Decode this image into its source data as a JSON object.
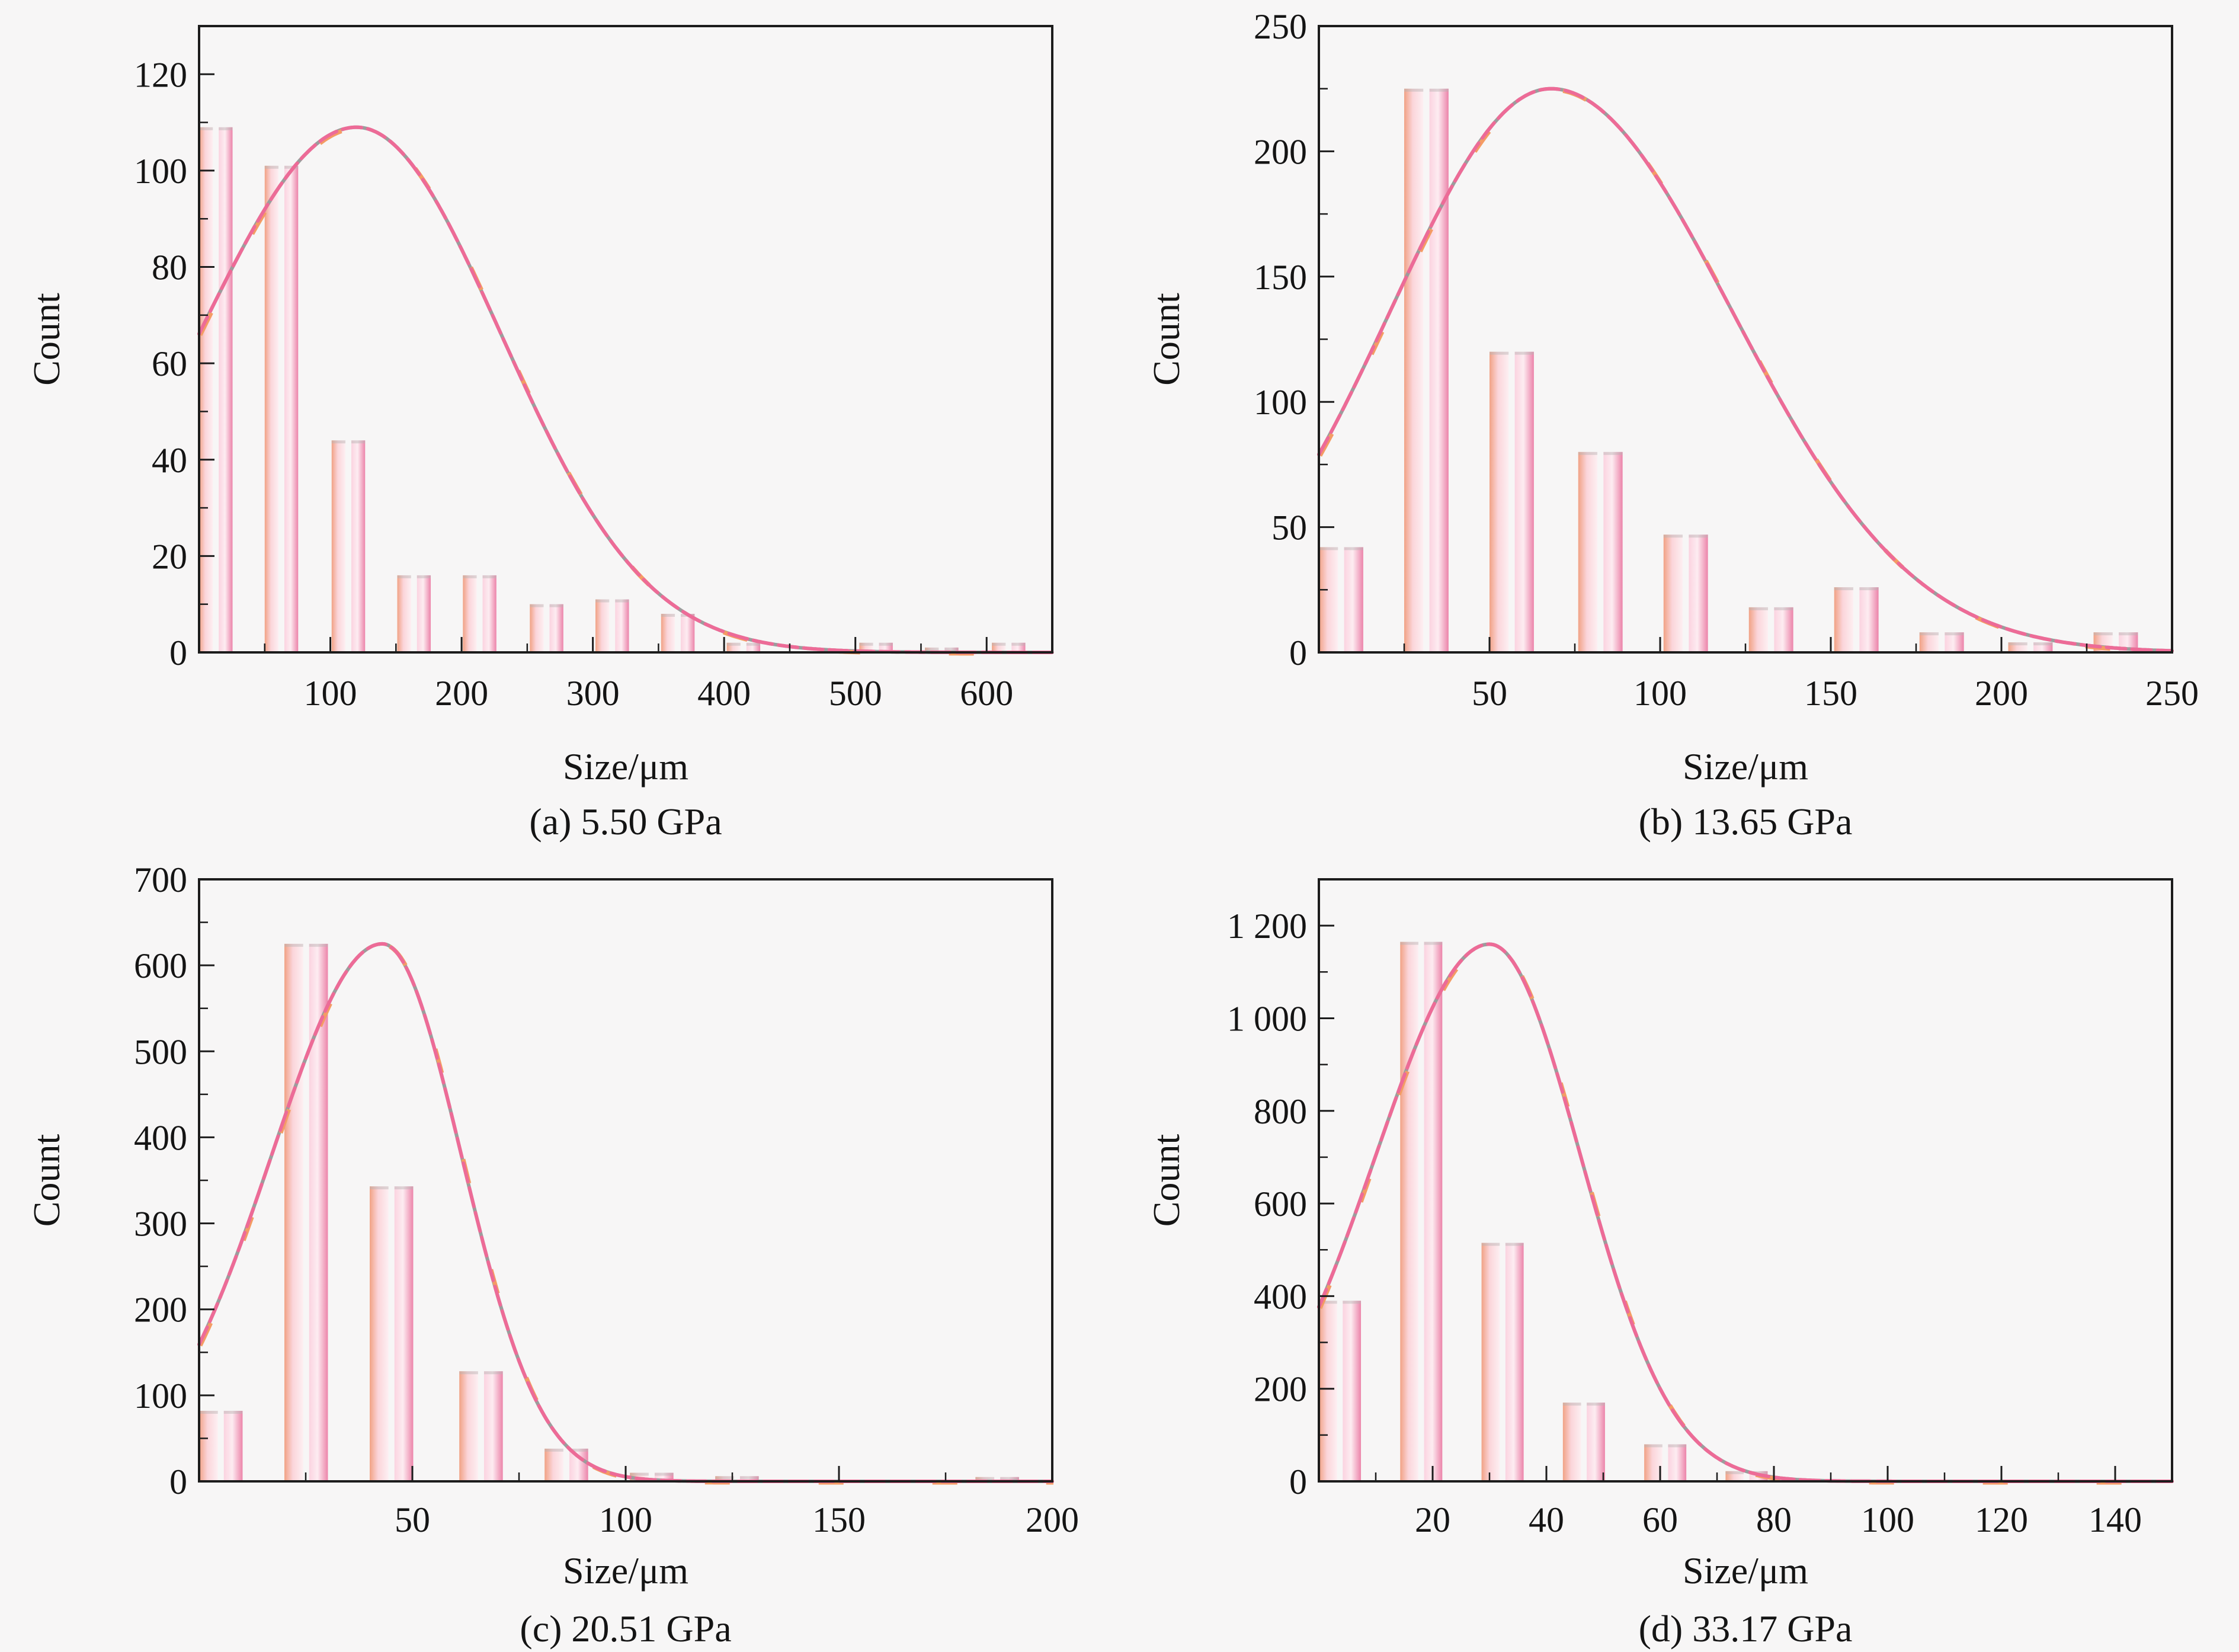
{
  "figure": {
    "background": "#f7f6f6",
    "axis_color": "#1c1c1c",
    "text_color": "#141414",
    "curve_colors": {
      "pink": "#ed6b97",
      "orange": "#f49c64",
      "gray": "#9c9c9c"
    },
    "bar_left_gradient": [
      "#f1a285",
      "#fbd5da",
      "#fdeff2"
    ],
    "bar_right_gradient": [
      "#fbd3e0",
      "#fdecf1",
      "#ec84aa"
    ],
    "bar_cap_color": "#b9b3b3"
  },
  "chart_data": [
    {
      "id": "a",
      "type": "bar",
      "subtype": "histogram-with-fit-curve",
      "caption": "(a) 5.50 GPa",
      "xlabel": "Size/μm",
      "ylabel": "Count",
      "xlim": [
        0,
        650
      ],
      "ylim": [
        0,
        130
      ],
      "xtick_values": [
        100,
        200,
        300,
        400,
        500,
        600
      ],
      "xtick_labels": [
        "100",
        "200",
        "300",
        "400",
        "500",
        "600"
      ],
      "x_minor_step": 50,
      "ytick_values": [
        0,
        20,
        40,
        60,
        80,
        100,
        120
      ],
      "ytick_labels": [
        "0",
        "20",
        "40",
        "60",
        "80",
        "100",
        "120"
      ],
      "y_minor_step": 10,
      "bar_width": 10.5,
      "bar_gap": 4.5,
      "bars": [
        [
          0,
          109
        ],
        [
          50,
          101
        ],
        [
          101,
          44
        ],
        [
          151,
          16
        ],
        [
          201,
          16
        ],
        [
          252,
          10
        ],
        [
          302,
          11
        ],
        [
          352,
          8
        ],
        [
          402,
          2
        ],
        [
          503,
          2
        ],
        [
          553,
          1
        ],
        [
          604,
          2
        ]
      ],
      "curve": {
        "peak_x": 120,
        "peak_y": 109,
        "sigma_left": 120,
        "sigma_right": 110
      }
    },
    {
      "id": "b",
      "type": "bar",
      "subtype": "histogram-with-fit-curve",
      "caption": "(b) 13.65 GPa",
      "xlabel": "Size/μm",
      "ylabel": "Count",
      "xlim": [
        0,
        250
      ],
      "ylim": [
        0,
        250
      ],
      "xtick_values": [
        50,
        100,
        150,
        200,
        250
      ],
      "xtick_labels": [
        "50",
        "100",
        "150",
        "200",
        "250"
      ],
      "x_minor_step": 25,
      "ytick_values": [
        0,
        50,
        100,
        150,
        200,
        250
      ],
      "ytick_labels": [
        "0",
        "50",
        "100",
        "150",
        "200",
        "250"
      ],
      "y_minor_step": 25,
      "bar_width": 5.6,
      "bar_gap": 1.8,
      "bars": [
        [
          0,
          42
        ],
        [
          25,
          225
        ],
        [
          50,
          120
        ],
        [
          76,
          80
        ],
        [
          101,
          47
        ],
        [
          126,
          18
        ],
        [
          151,
          26
        ],
        [
          176,
          8
        ],
        [
          202,
          4
        ],
        [
          227,
          8
        ]
      ],
      "curve": {
        "peak_x": 68,
        "peak_y": 225,
        "sigma_left": 47,
        "sigma_right": 53
      }
    },
    {
      "id": "c",
      "type": "bar",
      "subtype": "histogram-with-fit-curve",
      "caption": "(c) 20.51 GPa",
      "xlabel": "Size/μm",
      "ylabel": "Count",
      "xlim": [
        0,
        200
      ],
      "ylim": [
        0,
        700
      ],
      "xtick_values": [
        50,
        100,
        150,
        200
      ],
      "xtick_labels": [
        "50",
        "100",
        "150",
        "200"
      ],
      "x_minor_step": 25,
      "ytick_values": [
        0,
        100,
        200,
        300,
        400,
        500,
        600,
        700
      ],
      "ytick_labels": [
        "0",
        "100",
        "200",
        "300",
        "400",
        "500",
        "600",
        "700"
      ],
      "y_minor_step": 50,
      "bar_width": 4.4,
      "bar_gap": 1.4,
      "bars": [
        [
          0,
          82
        ],
        [
          20,
          625
        ],
        [
          40,
          343
        ],
        [
          61,
          128
        ],
        [
          81,
          38
        ],
        [
          101,
          10
        ],
        [
          121,
          6
        ],
        [
          182,
          5
        ]
      ],
      "curve": {
        "peak_x": 43,
        "peak_y": 625,
        "sigma_left": 26,
        "sigma_right": 18.5
      }
    },
    {
      "id": "d",
      "type": "bar",
      "subtype": "histogram-with-fit-curve",
      "caption": "(d) 33.17 GPa",
      "xlabel": "Size/μm",
      "ylabel": "Count",
      "xlim": [
        0,
        150
      ],
      "ylim": [
        0,
        1300
      ],
      "xtick_values": [
        20,
        40,
        60,
        80,
        100,
        120,
        140
      ],
      "xtick_labels": [
        "20",
        "40",
        "60",
        "80",
        "100",
        "120",
        "140"
      ],
      "x_minor_step": 10,
      "ytick_values": [
        0,
        200,
        400,
        600,
        800,
        1000,
        1200
      ],
      "ytick_labels": [
        "0",
        "200",
        "400",
        "600",
        "800",
        "1 000",
        "1 200"
      ],
      "y_minor_step": 100,
      "bar_width": 3.2,
      "bar_gap": 1.0,
      "bars": [
        [
          0,
          390
        ],
        [
          14.3,
          1165
        ],
        [
          28.6,
          515
        ],
        [
          42.9,
          170
        ],
        [
          57.2,
          80
        ],
        [
          71.5,
          22
        ]
      ],
      "curve": {
        "peak_x": 30,
        "peak_y": 1160,
        "sigma_left": 20,
        "sigma_right": 16
      }
    }
  ]
}
